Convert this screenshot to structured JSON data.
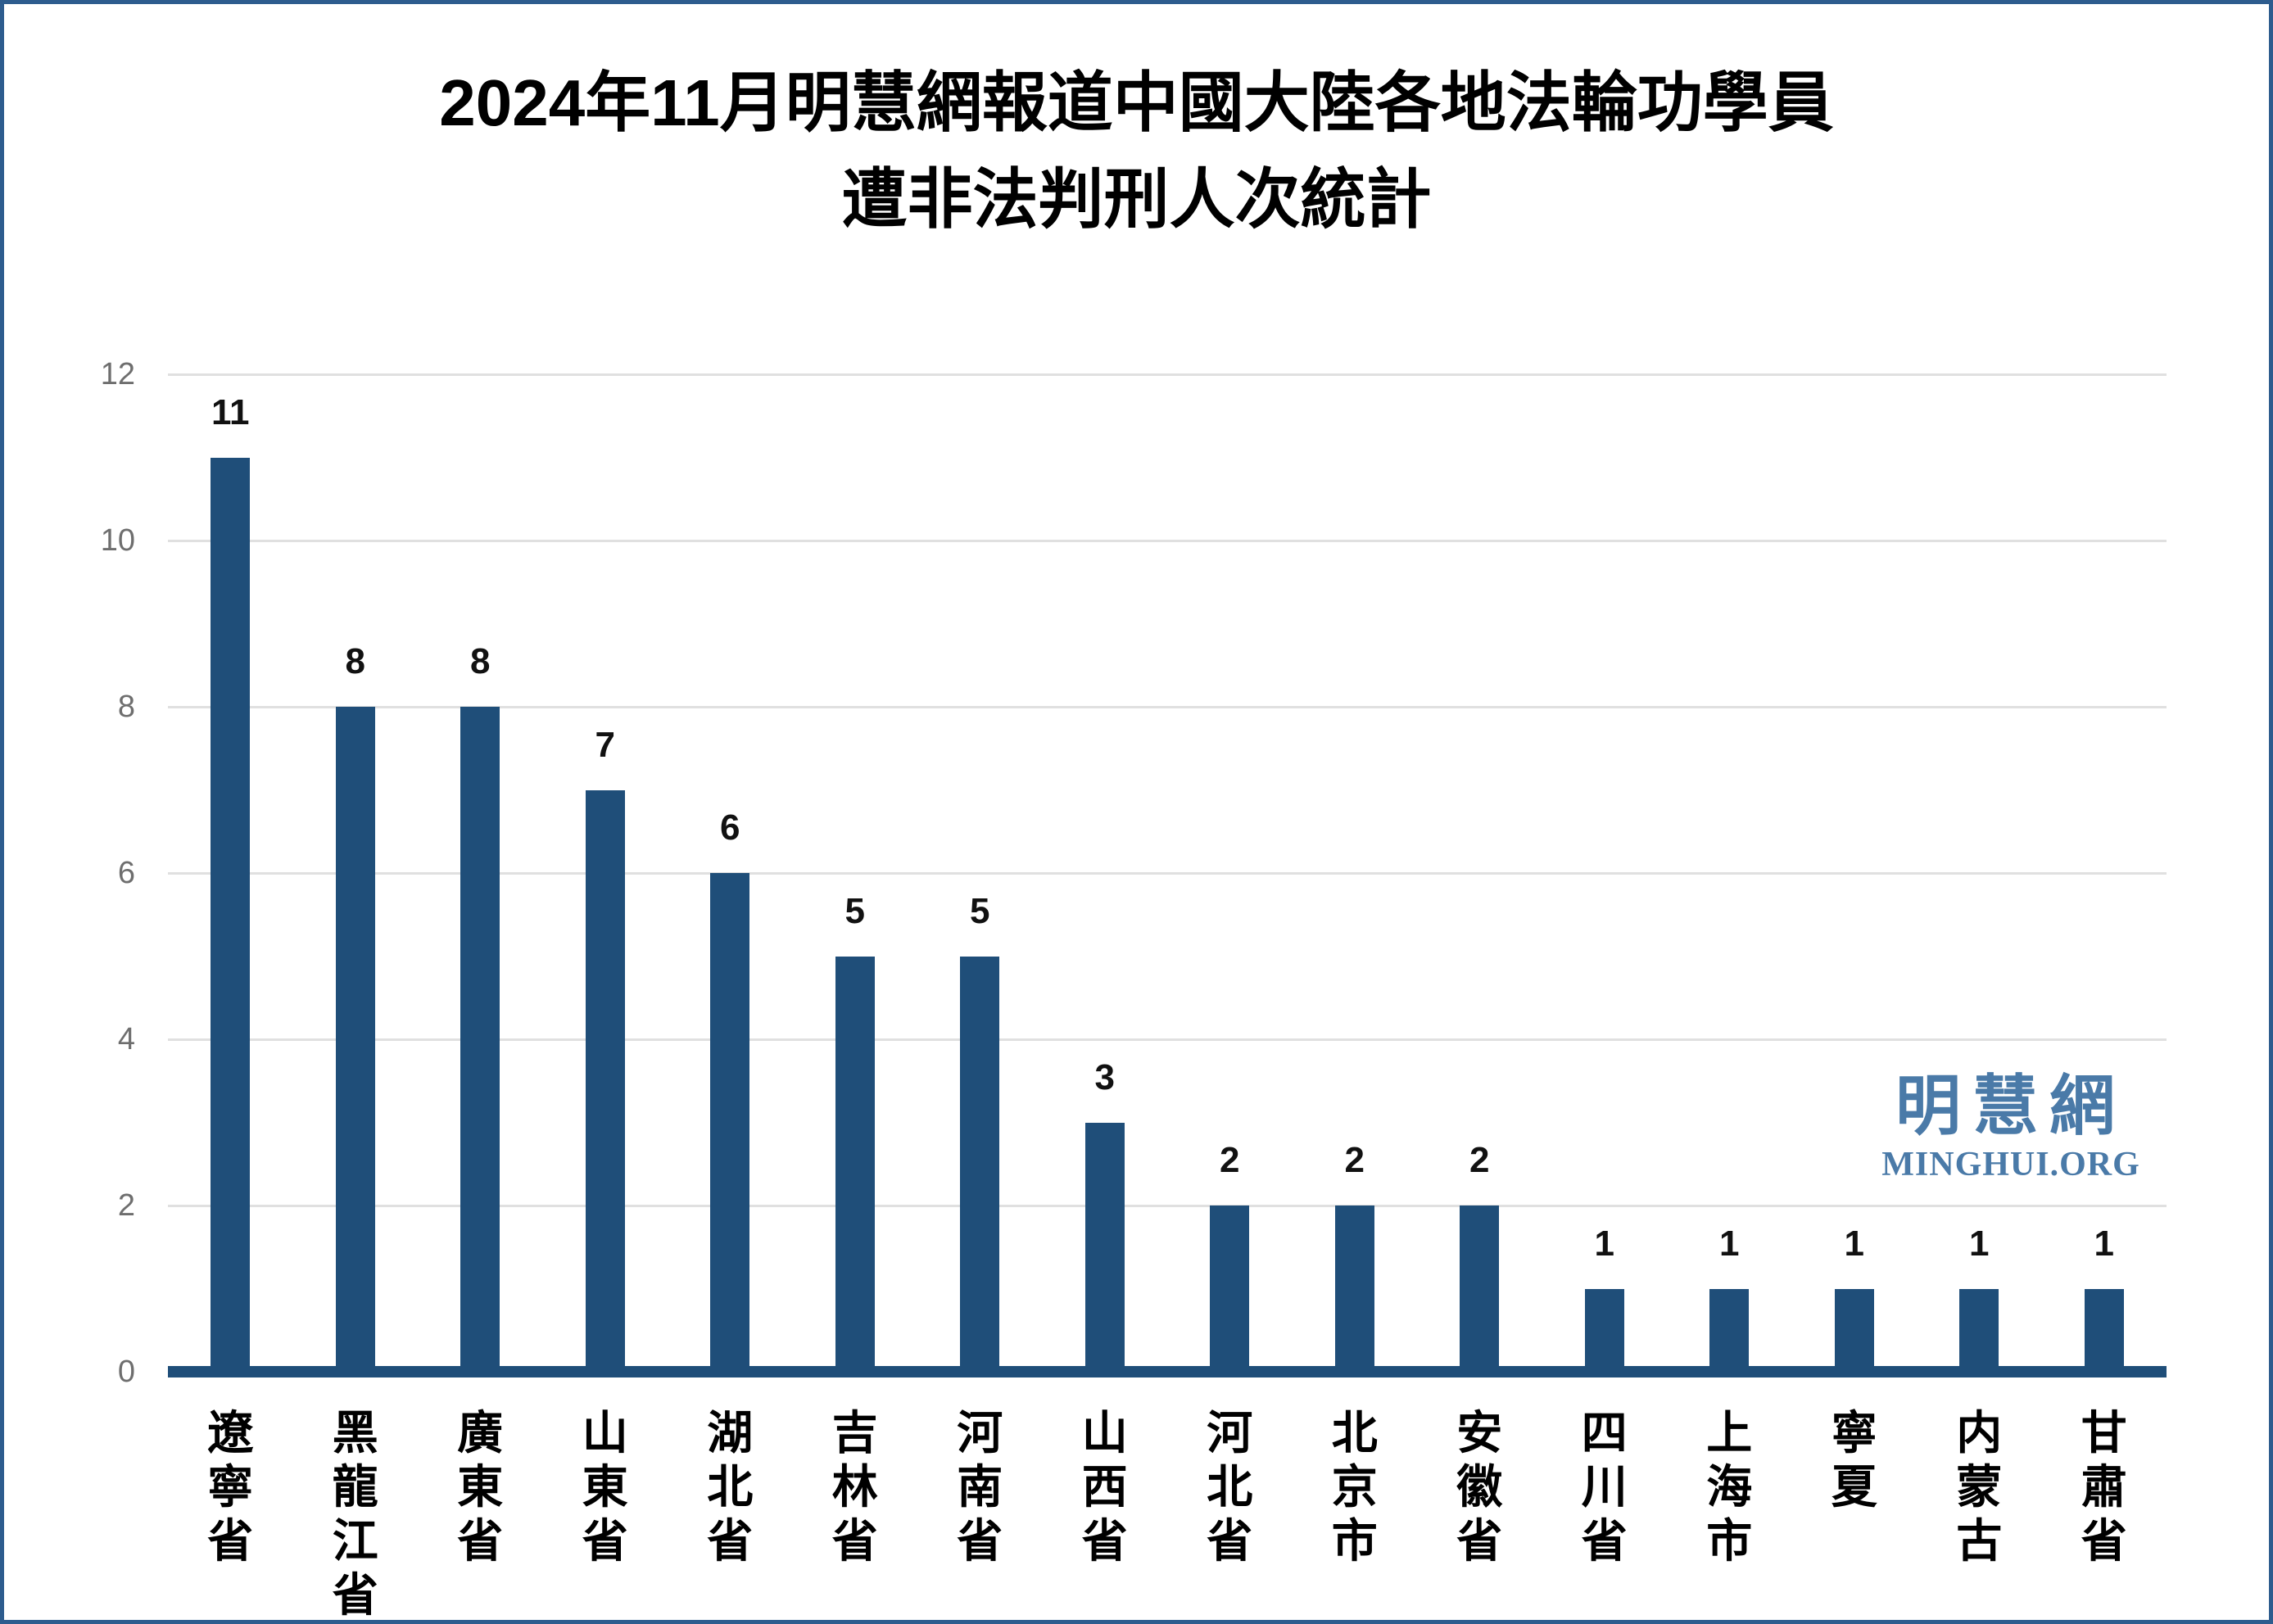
{
  "title": {
    "line1": "2024年11月明慧網報道中國大陸各地法輪功學員",
    "line2": "遭非法判刑人次統計"
  },
  "watermark": {
    "cjk": "明慧網",
    "latin": "MINGHUI.ORG",
    "color": "#4a7aa8"
  },
  "colors": {
    "bar": "#1f4e79",
    "axis_line": "#1f4e79",
    "gridline": "#e0e0e0",
    "tick_label": "#6e6e6e",
    "value_label": "#111111",
    "frame_border": "#2d5c8e",
    "background": "#ffffff"
  },
  "chart_data": {
    "type": "bar",
    "title": "2024年11月明慧網報道中國大陸各地法輪功學員遭非法判刑人次統計",
    "categories": [
      "遼寧省",
      "黑龍江省",
      "廣東省",
      "山東省",
      "湖北省",
      "吉林省",
      "河南省",
      "山西省",
      "河北省",
      "北京市",
      "安徽省",
      "四川省",
      "上海市",
      "寧夏",
      "内蒙古",
      "甘肅省"
    ],
    "values": [
      11,
      8,
      8,
      7,
      6,
      5,
      5,
      3,
      2,
      2,
      2,
      1,
      1,
      1,
      1,
      1
    ],
    "xlabel": "",
    "ylabel": "",
    "ylim": [
      0,
      12
    ],
    "yticks": [
      0,
      2,
      4,
      6,
      8,
      10,
      12
    ],
    "grid": true,
    "legend": "none",
    "value_labels": true,
    "x_label_orientation": "vertical"
  }
}
